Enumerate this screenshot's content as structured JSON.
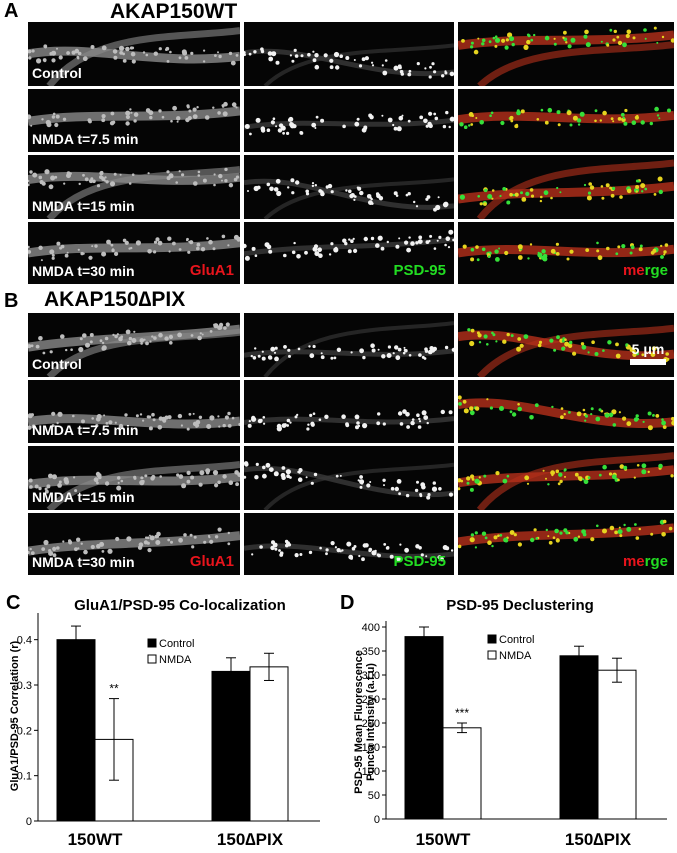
{
  "panels": {
    "A": {
      "letter": "A",
      "title": "AKAP150WT"
    },
    "B": {
      "letter": "B",
      "title": "AKAP150∆PIX"
    }
  },
  "rows": [
    "Control",
    "NMDA t=7.5 min",
    "NMDA t=15 min",
    "NMDA t=30 min"
  ],
  "channels": {
    "glua1": "GluA1",
    "psd95": "PSD-95",
    "merge_a": "me",
    "merge_b": "rge"
  },
  "scalebar": "5 μm",
  "colors": {
    "glua1": "#e8141c",
    "psd95": "#22dd22",
    "bar_control": "#000000",
    "bar_nmda": "#ffffff"
  },
  "chart_data": [
    {
      "panel": "C",
      "type": "bar",
      "title": "GluA1/PSD-95 Co-localization",
      "ylabel": "GluA1/PSD-95 Correlation (r)",
      "categories": [
        "150WT",
        "150∆PIX"
      ],
      "ylim": [
        0,
        0.45
      ],
      "yticks": [
        "0",
        "0.1",
        "0.2",
        "0.3",
        "0.4"
      ],
      "series": [
        {
          "name": "Control",
          "values": [
            0.4,
            0.33
          ],
          "errors": [
            0.03,
            0.03
          ]
        },
        {
          "name": "NMDA",
          "values": [
            0.18,
            0.34
          ],
          "errors": [
            0.09,
            0.03
          ]
        }
      ],
      "annotations": [
        {
          "category": "150WT",
          "series": "NMDA",
          "text": "**"
        }
      ],
      "legend": "top-right"
    },
    {
      "panel": "D",
      "type": "bar",
      "title": "PSD-95 Declustering",
      "ylabel": "PSD-95 Mean Fluorescence Puncta Intensity (a.f.u)",
      "categories": [
        "150WT",
        "150∆PIX"
      ],
      "ylim": [
        0,
        400
      ],
      "yticks": [
        "0",
        "50",
        "100",
        "150",
        "200",
        "250",
        "300",
        "350",
        "400"
      ],
      "series": [
        {
          "name": "Control",
          "values": [
            380,
            340
          ],
          "errors": [
            20,
            20
          ]
        },
        {
          "name": "NMDA",
          "values": [
            190,
            310
          ],
          "errors": [
            10,
            25
          ]
        }
      ],
      "annotations": [
        {
          "category": "150WT",
          "series": "NMDA",
          "text": "***"
        }
      ],
      "legend": "top-right"
    }
  ]
}
